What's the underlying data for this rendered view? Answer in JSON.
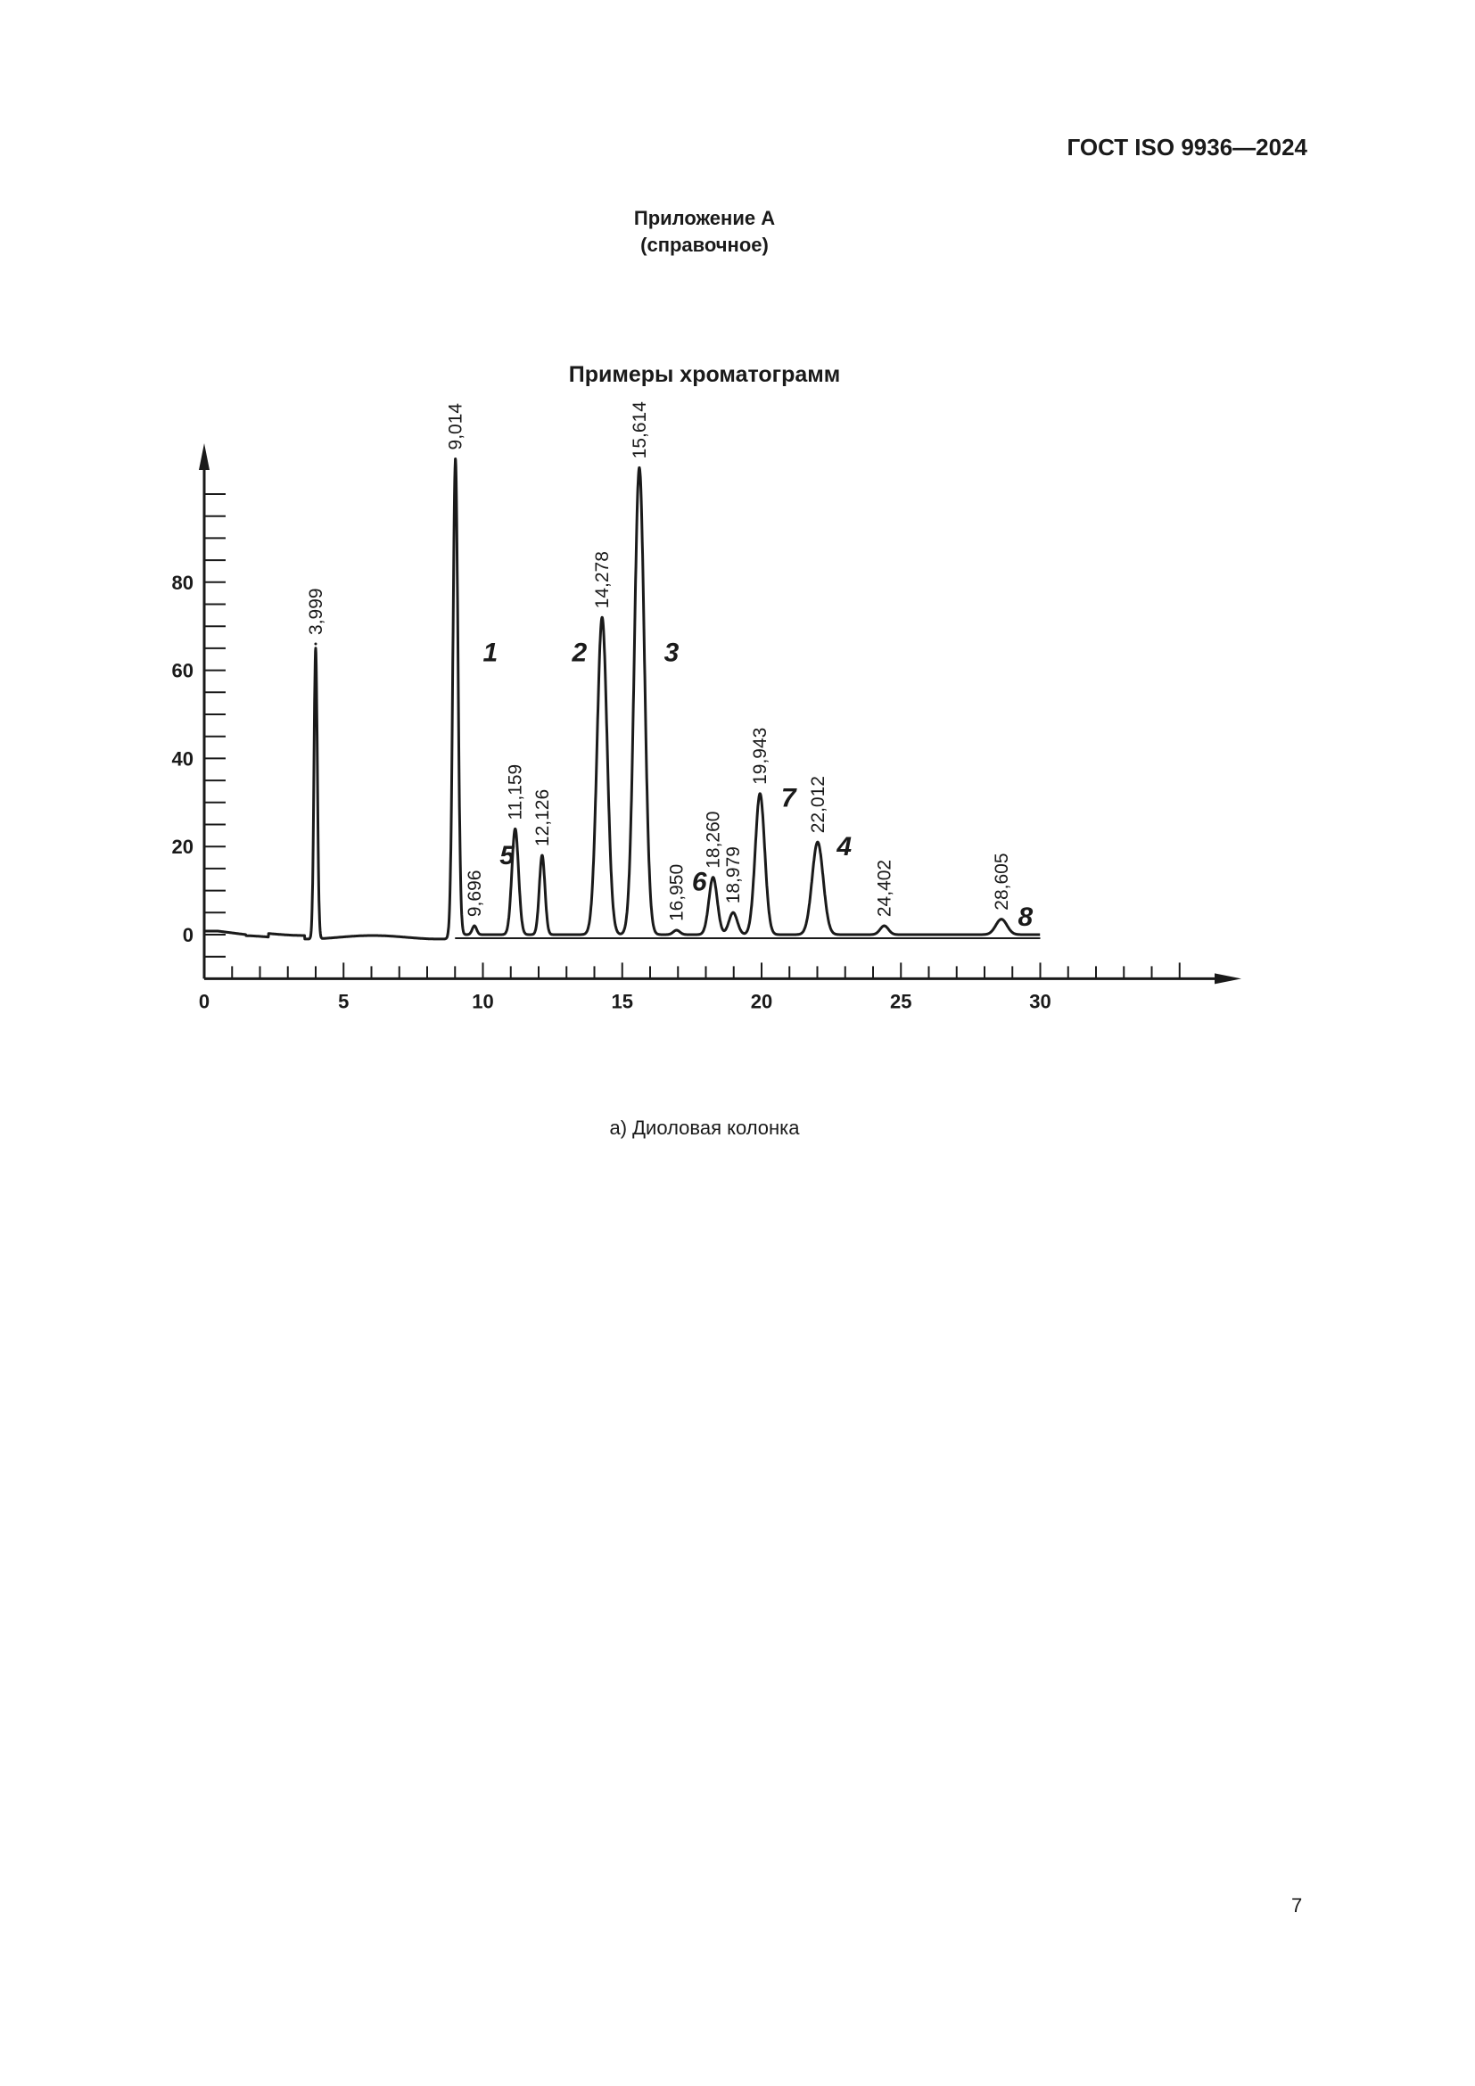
{
  "header": {
    "doc_code": "ГОСТ ISO 9936—2024"
  },
  "appendix": {
    "title": "Приложение А",
    "subtitle": "(справочное)"
  },
  "figure": {
    "title": "Примеры хроматограмм",
    "caption": "а)  Диоловая колонка"
  },
  "page_number": "7",
  "chart_data": {
    "type": "line",
    "title": "Примеры хроматограмм",
    "xlabel": "",
    "ylabel": "",
    "xlim": [
      0,
      35
    ],
    "ylim": [
      -10,
      105
    ],
    "x_ticks": [
      0,
      5,
      10,
      15,
      20,
      25,
      30
    ],
    "y_ticks": [
      0,
      20,
      40,
      60,
      80
    ],
    "grid": false,
    "peaks": [
      {
        "label": "3,999",
        "x": 3.999,
        "height": 66
      },
      {
        "label": "9,014",
        "x": 9.014,
        "height": 108
      },
      {
        "label": "9,696",
        "x": 9.696,
        "height": 2
      },
      {
        "label": "11,159",
        "x": 11.159,
        "height": 24
      },
      {
        "label": "12,126",
        "x": 12.126,
        "height": 18
      },
      {
        "label": "14,278",
        "x": 14.278,
        "height": 72
      },
      {
        "label": "15,614",
        "x": 15.614,
        "height": 106
      },
      {
        "label": "16,950",
        "x": 16.95,
        "height": 1
      },
      {
        "label": "18,260",
        "x": 18.26,
        "height": 13
      },
      {
        "label": "18,979",
        "x": 18.979,
        "height": 5
      },
      {
        "label": "19,943",
        "x": 19.943,
        "height": 32
      },
      {
        "label": "22,012",
        "x": 22.012,
        "height": 21
      },
      {
        "label": "24,402",
        "x": 24.402,
        "height": 2
      },
      {
        "label": "28,605",
        "x": 28.605,
        "height": 3.5
      }
    ],
    "peak_numbers": [
      {
        "label": "1",
        "x": 10.0,
        "y": 62
      },
      {
        "label": "2",
        "x": 13.2,
        "y": 62
      },
      {
        "label": "3",
        "x": 16.5,
        "y": 62
      },
      {
        "label": "4",
        "x": 22.7,
        "y": 18
      },
      {
        "label": "5",
        "x": 10.6,
        "y": 16
      },
      {
        "label": "6",
        "x": 17.5,
        "y": 10
      },
      {
        "label": "7",
        "x": 20.7,
        "y": 29
      },
      {
        "label": "8",
        "x": 29.2,
        "y": 2
      }
    ]
  }
}
